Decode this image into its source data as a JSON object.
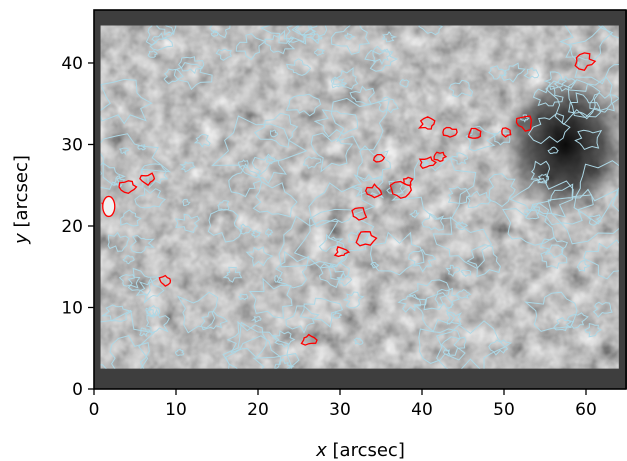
{
  "chart_data": {
    "type": "image",
    "xlabel_var": "x",
    "xlabel_unit": " [arcsec]",
    "ylabel_var": "y",
    "ylabel_unit": " [arcsec]",
    "xlim": [
      0,
      65
    ],
    "ylim": [
      0,
      46.5
    ],
    "xticks": [
      0,
      10,
      20,
      30,
      40,
      50,
      60
    ],
    "yticks": [
      0,
      10,
      20,
      30,
      40
    ],
    "image_extent_data": {
      "x": [
        0.8,
        64
      ],
      "y": [
        2.5,
        44.6
      ]
    },
    "colormap": "gray",
    "background_color": "#3e3e3e",
    "contours": [
      {
        "color": "#add8e6"
      },
      {
        "color": "#ff0000"
      }
    ],
    "red_features": [
      {
        "cx": 1.8,
        "cy": 22.4
      },
      {
        "cx": 4.2,
        "cy": 24.8
      },
      {
        "cx": 6.6,
        "cy": 25.8
      },
      {
        "cx": 8.7,
        "cy": 13.3
      },
      {
        "cx": 26.2,
        "cy": 6.0
      },
      {
        "cx": 30.2,
        "cy": 16.8
      },
      {
        "cx": 33.1,
        "cy": 18.5
      },
      {
        "cx": 32.3,
        "cy": 21.5
      },
      {
        "cx": 34.2,
        "cy": 24.3
      },
      {
        "cx": 34.8,
        "cy": 28.4
      },
      {
        "cx": 37.4,
        "cy": 24.4
      },
      {
        "cx": 38.3,
        "cy": 25.5
      },
      {
        "cx": 40.6,
        "cy": 27.8
      },
      {
        "cx": 42.2,
        "cy": 28.5
      },
      {
        "cx": 40.7,
        "cy": 32.5
      },
      {
        "cx": 43.4,
        "cy": 31.5
      },
      {
        "cx": 46.5,
        "cy": 31.3
      },
      {
        "cx": 50.2,
        "cy": 31.5
      },
      {
        "cx": 52.6,
        "cy": 32.7
      },
      {
        "cx": 59.8,
        "cy": 40.2
      }
    ]
  }
}
